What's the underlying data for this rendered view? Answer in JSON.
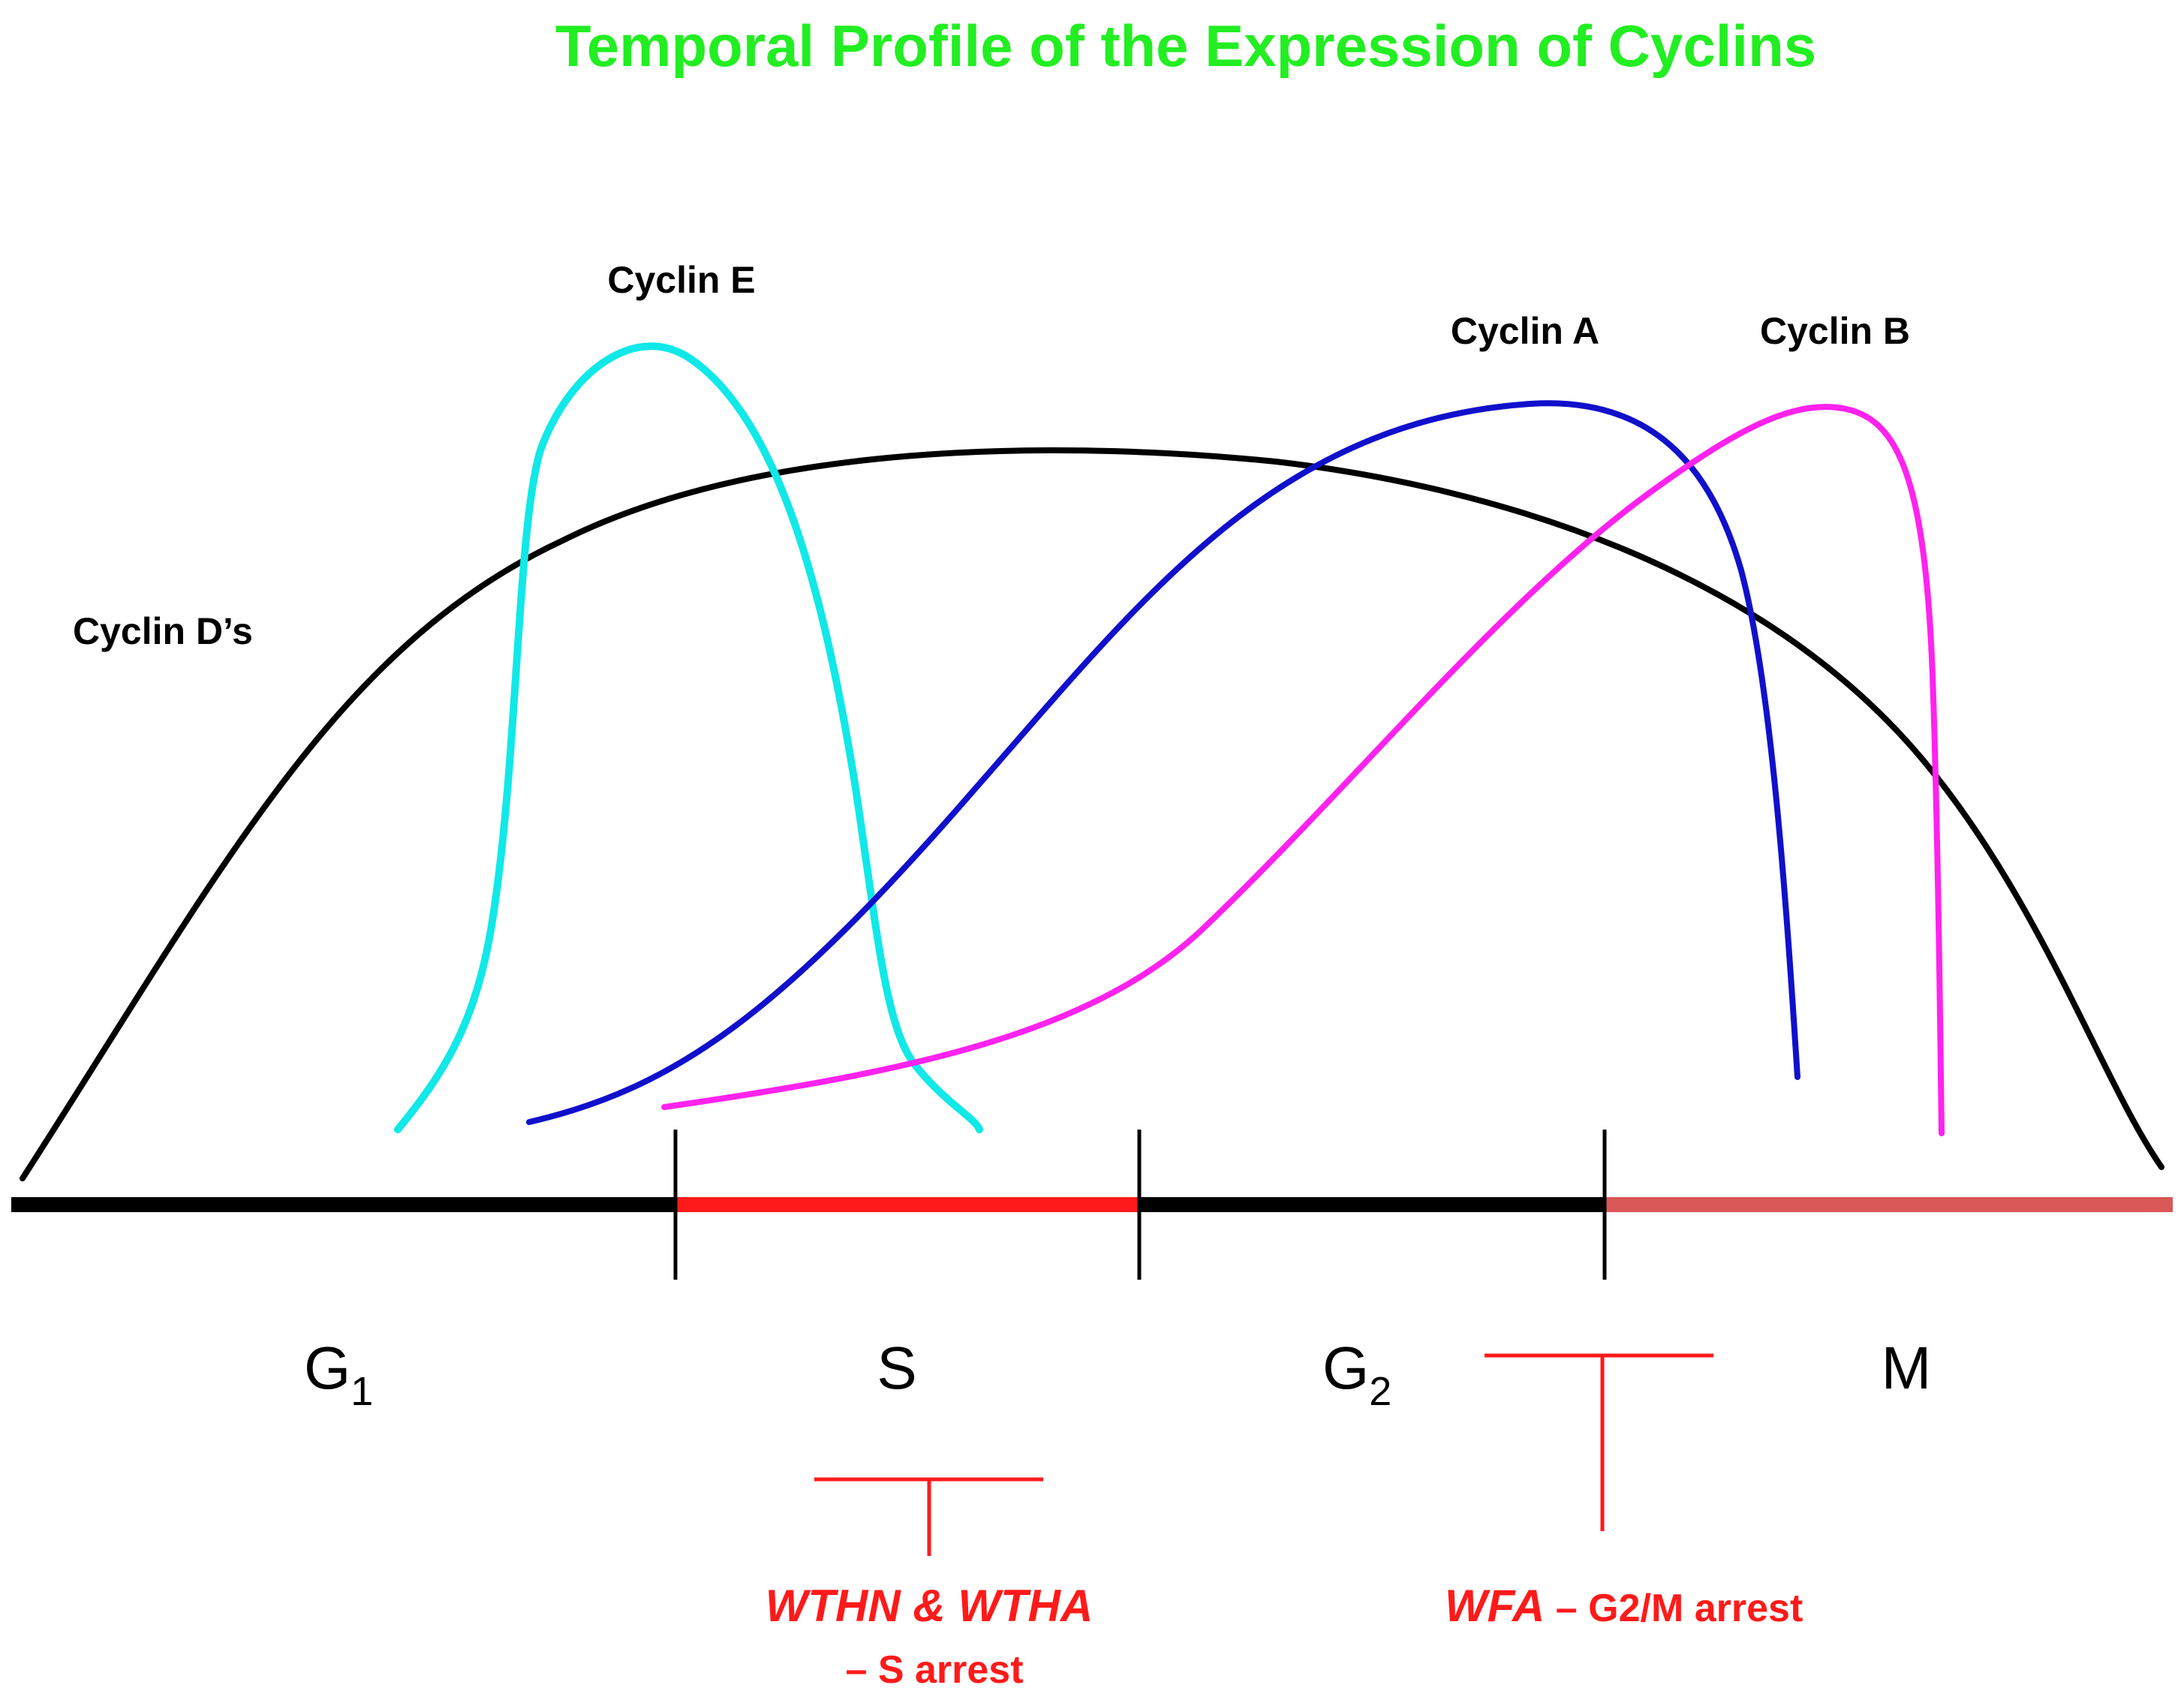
{
  "title": "Temporal Profile of the Expression of Cyclins",
  "colors": {
    "title": "#22ee22",
    "cyclin_d": "#000000",
    "cyclin_e": "#11e8e8",
    "cyclin_a": "#1010cc",
    "cyclin_b": "#ff22ee",
    "axis": "#000000",
    "s_phase": "#ff1a1a",
    "m_phase": "#d95757",
    "inhibition": "#ff1a1a"
  },
  "curves": {
    "cyclin_d": "Cyclin D’s",
    "cyclin_e": "Cyclin E",
    "cyclin_a": "Cyclin A",
    "cyclin_b": "Cyclin B"
  },
  "phases": {
    "g1": {
      "main": "G",
      "sub": "1"
    },
    "s": {
      "main": "S"
    },
    "g2": {
      "main": "G",
      "sub": "2"
    },
    "m": {
      "main": "M"
    }
  },
  "inhibitors": {
    "s_arrest": {
      "agents": "WTHN & WTHA",
      "effect": "– S arrest"
    },
    "g2m_arrest": {
      "agents": "WFA",
      "effect": " – G2/M arrest"
    }
  }
}
